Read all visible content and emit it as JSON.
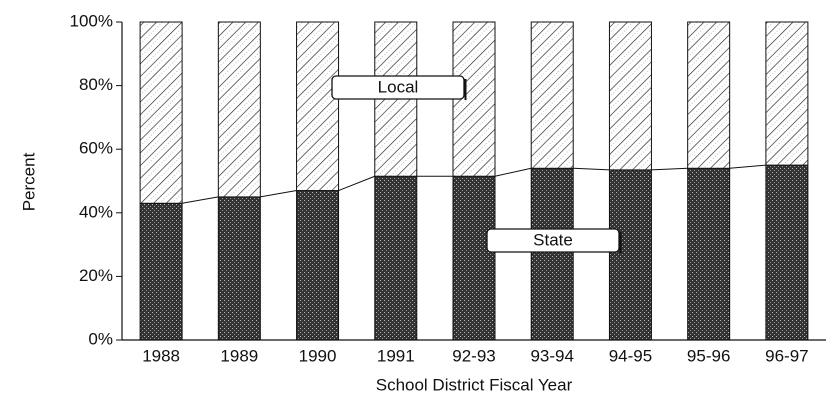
{
  "chart_data": {
    "type": "stacked_bar",
    "categories": [
      "1988",
      "1989",
      "1990",
      "1991",
      "92-93",
      "93-94",
      "94-95",
      "95-96",
      "96-97"
    ],
    "series": [
      {
        "name": "State",
        "color": "#333333",
        "values": [
          43,
          45,
          47,
          51.5,
          51.5,
          54,
          53.5,
          54,
          55
        ]
      },
      {
        "name": "Local",
        "color": "#ffffff",
        "values": [
          57,
          55,
          53,
          48.5,
          48.5,
          46,
          46.5,
          46,
          45
        ]
      }
    ],
    "ylim": [
      0,
      100
    ],
    "yticks": [
      {
        "value": 0,
        "label": "0%"
      },
      {
        "value": 20,
        "label": "20%"
      },
      {
        "value": 40,
        "label": "40%"
      },
      {
        "value": 60,
        "label": "60%"
      },
      {
        "value": 80,
        "label": "80%"
      },
      {
        "value": 100,
        "label": "100%"
      }
    ],
    "ylabel": "Percent",
    "xlabel": "School District Fiscal Year"
  }
}
